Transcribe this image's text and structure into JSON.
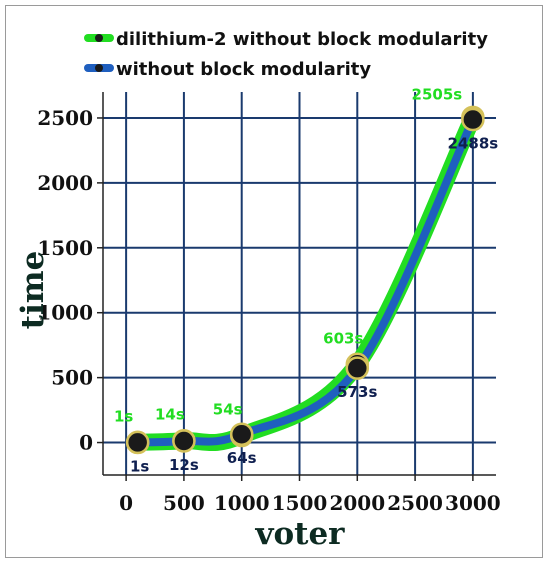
{
  "chart_data": {
    "type": "line",
    "title": "",
    "xlabel": "voter",
    "ylabel": "time",
    "xlim": [
      -200,
      3200
    ],
    "ylim": [
      -250,
      2700
    ],
    "xticks": [
      0,
      500,
      1000,
      1500,
      2000,
      2500,
      3000
    ],
    "yticks": [
      0,
      500,
      1000,
      1500,
      2000,
      2500
    ],
    "grid": true,
    "legend_position": "top",
    "x": [
      100,
      500,
      1000,
      2000,
      3000
    ],
    "series": [
      {
        "name": "dilithium-2 without block modularity",
        "color": "#22dd22",
        "values": [
          1,
          14,
          54,
          603,
          2505
        ],
        "labels": [
          "1s",
          "14s",
          "54s",
          "603s",
          "2505s"
        ]
      },
      {
        "name": "without block modularity",
        "color": "#1f5fbf",
        "values": [
          1,
          12,
          64,
          573,
          2488
        ],
        "labels": [
          "1s",
          "12s",
          "64s",
          "573s",
          "2488s"
        ]
      }
    ]
  },
  "colors": {
    "grid": "#1a3a6e",
    "marker_fill": "#1a1a1a",
    "marker_ring": "#d4c15a"
  }
}
